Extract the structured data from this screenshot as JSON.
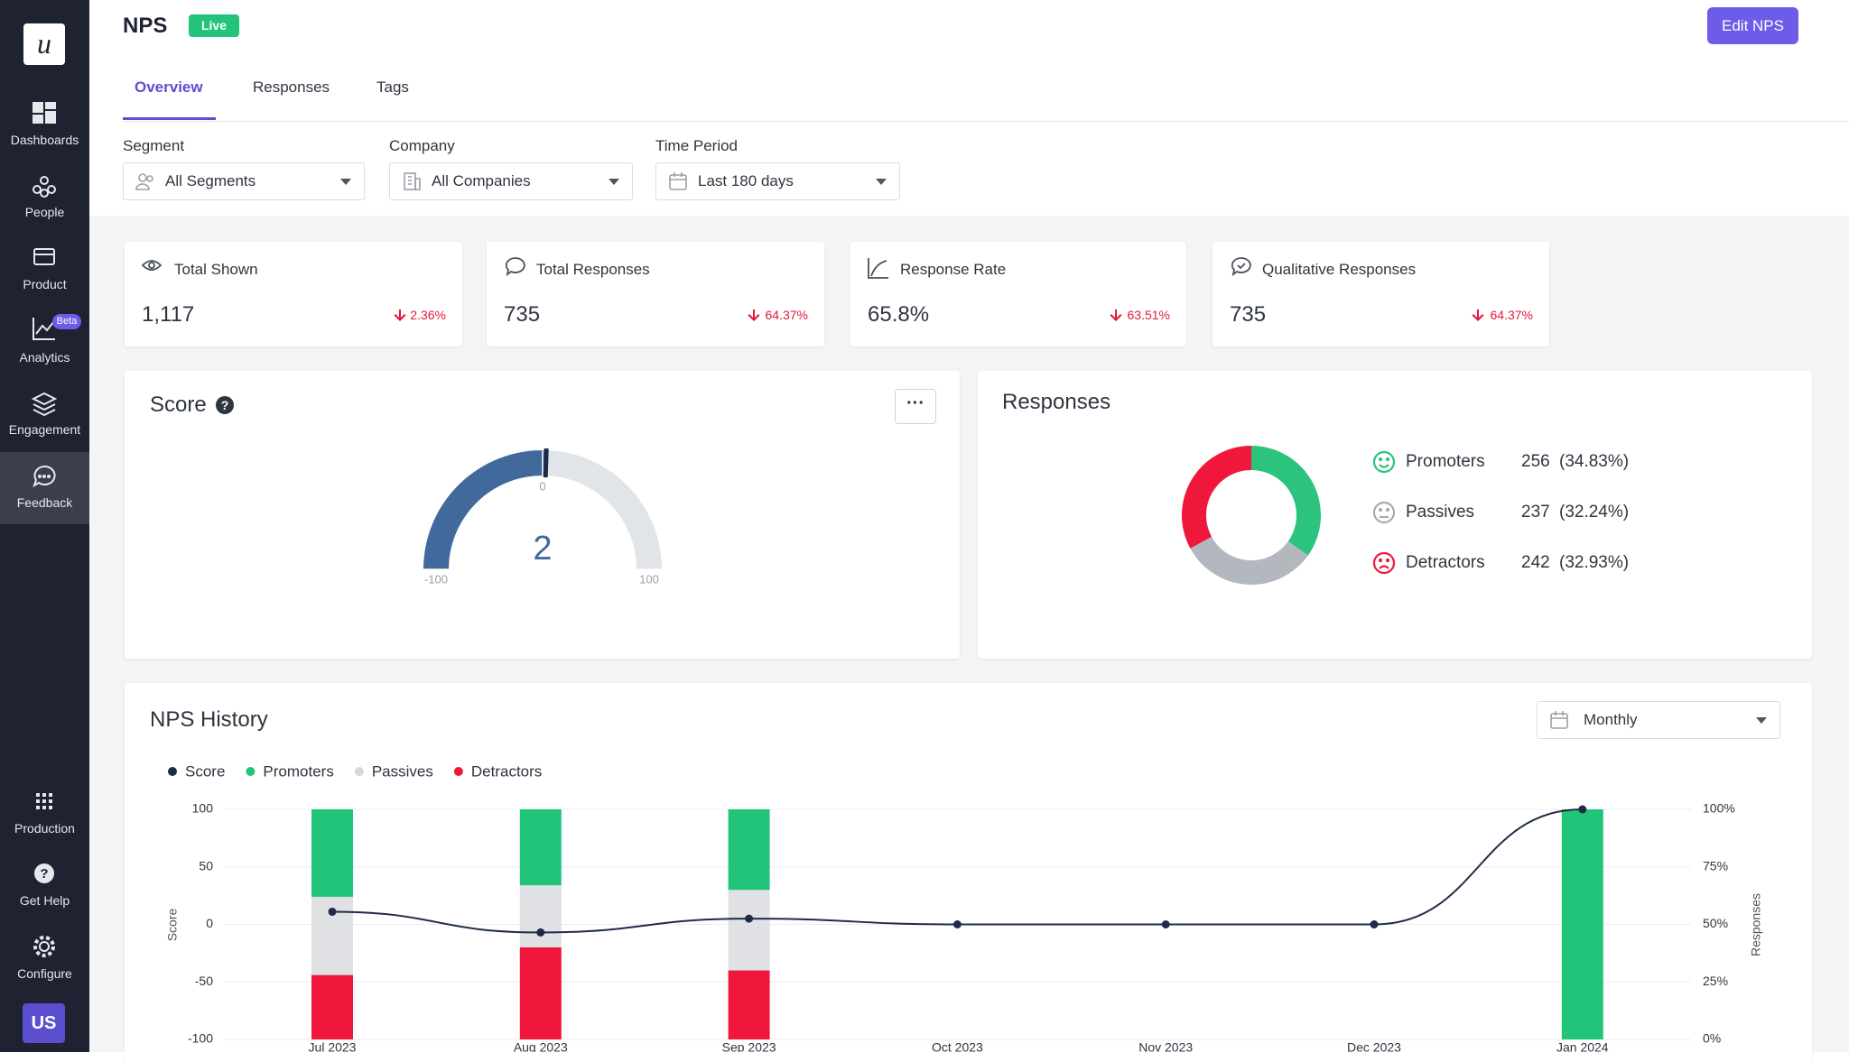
{
  "sidebar": {
    "logo": "u",
    "nav": [
      "Dashboards",
      "People",
      "Product",
      "Analytics",
      "Engagement",
      "Feedback"
    ],
    "analytics_badge": "Beta",
    "bottom": [
      "Production",
      "Get Help",
      "Configure"
    ],
    "avatar": "US"
  },
  "header": {
    "title": "NPS",
    "status": "Live",
    "action": "Edit NPS",
    "tabs": [
      "Overview",
      "Responses",
      "Tags"
    ]
  },
  "filters": [
    {
      "label": "Segment",
      "value": "All Segments"
    },
    {
      "label": "Company",
      "value": "All Companies"
    },
    {
      "label": "Time Period",
      "value": "Last 180 days"
    }
  ],
  "stats": [
    {
      "label": "Total Shown",
      "value": "1,117",
      "change": "2.36%"
    },
    {
      "label": "Total Responses",
      "value": "735",
      "change": "64.37%"
    },
    {
      "label": "Response Rate",
      "value": "65.8%",
      "change": "63.51%"
    },
    {
      "label": "Qualitative Responses",
      "value": "735",
      "change": "64.37%"
    }
  ],
  "chart_data": [
    {
      "type": "gauge",
      "title": "Score",
      "value": 2,
      "ylim": [
        -100,
        100
      ],
      "yticks": [
        -100,
        0,
        100
      ],
      "color": "#41699c",
      "track_color": "#e1e4e8"
    },
    {
      "type": "pie",
      "title": "Responses",
      "categories": [
        "Promoters",
        "Passives",
        "Detractors"
      ],
      "values": [
        256,
        237,
        242
      ],
      "shares": [
        34.83,
        32.24,
        32.93
      ],
      "share_labels": [
        "(34.83%)",
        "(32.24%)",
        "(32.93%)"
      ],
      "colors": [
        "#2cc47c",
        "#b3b8bf",
        "#f0173c"
      ]
    },
    {
      "type": "combo",
      "title": "NPS History",
      "period": "Monthly",
      "categories": [
        "Jul 2023",
        "Aug 2023",
        "Sep 2023",
        "Oct 2023",
        "Nov 2023",
        "Dec 2023",
        "Jan 2024"
      ],
      "series": [
        {
          "name": "Score",
          "color": "#1e2b48",
          "values": [
            11,
            -7,
            5,
            0,
            0,
            0,
            100
          ]
        },
        {
          "name": "Promoters",
          "axis": "y2",
          "color": "#22c47a",
          "values": [
            38,
            33,
            35,
            null,
            null,
            null,
            100
          ]
        },
        {
          "name": "Passives",
          "axis": "y2",
          "color": "#dfe1e4",
          "values": [
            34,
            27,
            35,
            null,
            null,
            null,
            0
          ]
        },
        {
          "name": "Detractors",
          "axis": "y2",
          "color": "#f0173c",
          "values": [
            28,
            40,
            30,
            null,
            null,
            null,
            0
          ]
        }
      ],
      "ylabel": "Score",
      "y2label": "Responses",
      "ylim": [
        -100,
        100
      ],
      "yticks": [
        -100,
        -50,
        0,
        50,
        100
      ],
      "y2lim": [
        0,
        100
      ],
      "y2ticks": [
        {
          "value": 0,
          "label": "0%"
        },
        {
          "value": 25,
          "label": "25%"
        },
        {
          "value": 50,
          "label": "50%"
        },
        {
          "value": 75,
          "label": "75%"
        },
        {
          "value": 100,
          "label": "100%"
        }
      ],
      "grid": true
    }
  ]
}
